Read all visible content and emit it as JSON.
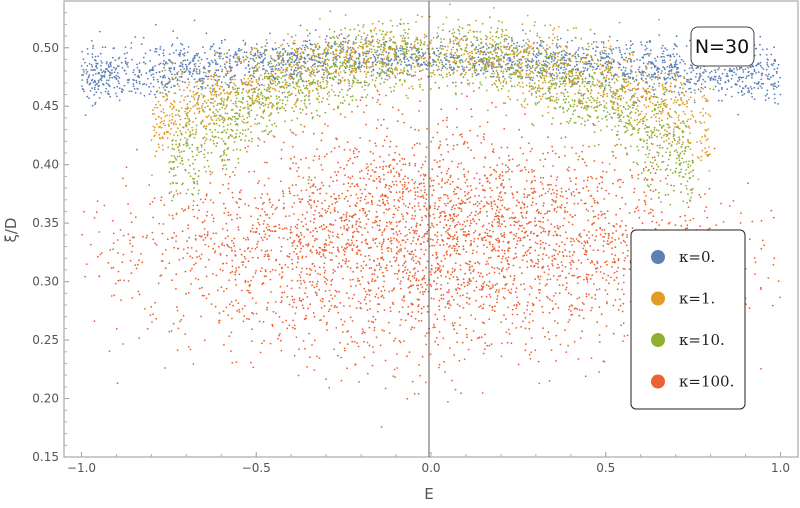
{
  "chart_data": {
    "type": "scatter",
    "title": "",
    "xlabel": "E",
    "ylabel": "ξ/D",
    "xlim": [
      -1.05,
      1.05
    ],
    "ylim": [
      0.15,
      0.54
    ],
    "x_ticks": [
      {
        "value": -1.0,
        "label": "−1.0"
      },
      {
        "value": -0.5,
        "label": "−0.5"
      },
      {
        "value": 0.0,
        "label": "0.0"
      },
      {
        "value": 0.5,
        "label": "0.5"
      },
      {
        "value": 1.0,
        "label": "1.0"
      }
    ],
    "y_ticks": [
      {
        "value": 0.15,
        "label": "0.15"
      },
      {
        "value": 0.2,
        "label": "0.20"
      },
      {
        "value": 0.25,
        "label": "0.25"
      },
      {
        "value": 0.3,
        "label": "0.30"
      },
      {
        "value": 0.35,
        "label": "0.35"
      },
      {
        "value": 0.4,
        "label": "0.40"
      },
      {
        "value": 0.45,
        "label": "0.45"
      },
      {
        "value": 0.5,
        "label": "0.50"
      }
    ],
    "grid": false,
    "legend_position": "right",
    "annotation": "N=30",
    "series": [
      {
        "name": "κ=0.",
        "color": "#5e81b5",
        "x_range": [
          -1.0,
          1.0
        ],
        "y_center": 0.49,
        "y_spread": 0.008,
        "curvature": 0.015
      },
      {
        "name": "κ=1.",
        "color": "#e19c24",
        "x_range": [
          -0.8,
          0.8
        ],
        "y_center": 0.495,
        "y_spread": 0.012,
        "curvature": 0.1
      },
      {
        "name": "κ=10.",
        "color": "#8fb032",
        "x_range": [
          -0.75,
          0.75
        ],
        "y_center": 0.495,
        "y_spread": 0.015,
        "curvature": 0.17
      },
      {
        "name": "κ=100.",
        "color": "#eb6235",
        "x_range": [
          -1.0,
          1.0
        ],
        "y_center": 0.335,
        "y_spread": 0.05,
        "curvature": 0.06
      }
    ]
  }
}
